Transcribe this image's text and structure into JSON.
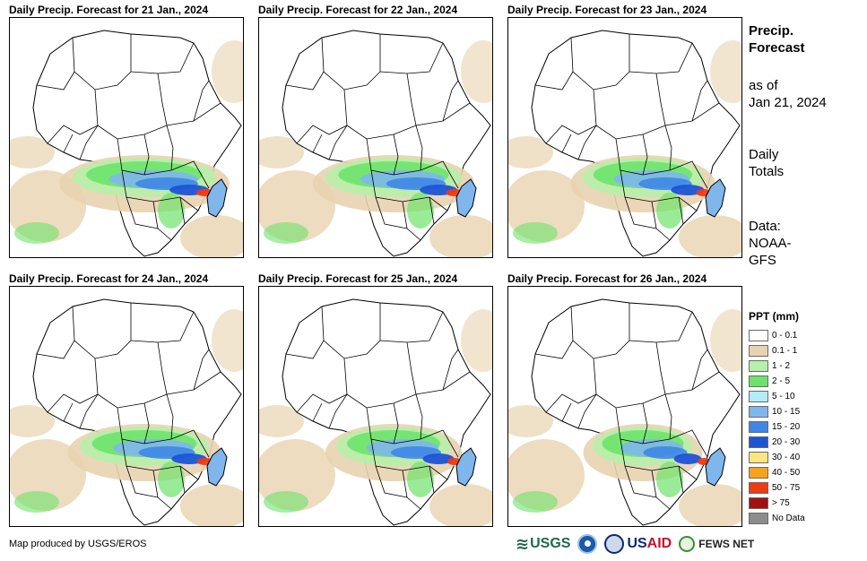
{
  "panels": [
    {
      "title": "Daily Precip. Forecast for 21 Jan., 2024",
      "intensity": 1.0
    },
    {
      "title": "Daily Precip. Forecast for 22 Jan., 2024",
      "intensity": 0.95
    },
    {
      "title": "Daily Precip. Forecast for 23 Jan., 2024",
      "intensity": 0.85
    },
    {
      "title": "Daily Precip. Forecast for 24 Jan., 2024",
      "intensity": 0.9
    },
    {
      "title": "Daily Precip. Forecast for 25 Jan., 2024",
      "intensity": 0.8
    },
    {
      "title": "Daily Precip. Forecast for 26 Jan., 2024",
      "intensity": 0.7
    }
  ],
  "sidebar": {
    "heading1": "Precip.",
    "heading2": "Forecast",
    "asof1": "as of",
    "asof2": "Jan 21, 2024",
    "totals1": "Daily",
    "totals2": "Totals",
    "data1": "Data:",
    "data2": "NOAA-",
    "data3": "GFS"
  },
  "legend": {
    "title": "PPT (mm)",
    "items": [
      {
        "label": "0 - 0.1",
        "color": "#ffffff"
      },
      {
        "label": "0.1 - 1",
        "color": "#e8d3b0"
      },
      {
        "label": "1 - 2",
        "color": "#b7f0a8"
      },
      {
        "label": "2 - 5",
        "color": "#6de36b"
      },
      {
        "label": "5 - 10",
        "color": "#b3ecf7"
      },
      {
        "label": "10 - 15",
        "color": "#7fb6ec"
      },
      {
        "label": "15 - 20",
        "color": "#3f87e4"
      },
      {
        "label": "20 - 30",
        "color": "#1c54d6"
      },
      {
        "label": "30 - 40",
        "color": "#fde47f"
      },
      {
        "label": "40 - 50",
        "color": "#f7a21b"
      },
      {
        "label": "50 - 75",
        "color": "#f03a12"
      },
      {
        "label": "> 75",
        "color": "#a01212"
      },
      {
        "label": "No Data",
        "color": "#8c8c8c"
      }
    ]
  },
  "footer": {
    "credit": "Map produced by USGS/EROS"
  },
  "logos": {
    "usgs": "USGS",
    "usaid_us": "US",
    "usaid_aid": "AID",
    "fews": "FEWS NET"
  }
}
